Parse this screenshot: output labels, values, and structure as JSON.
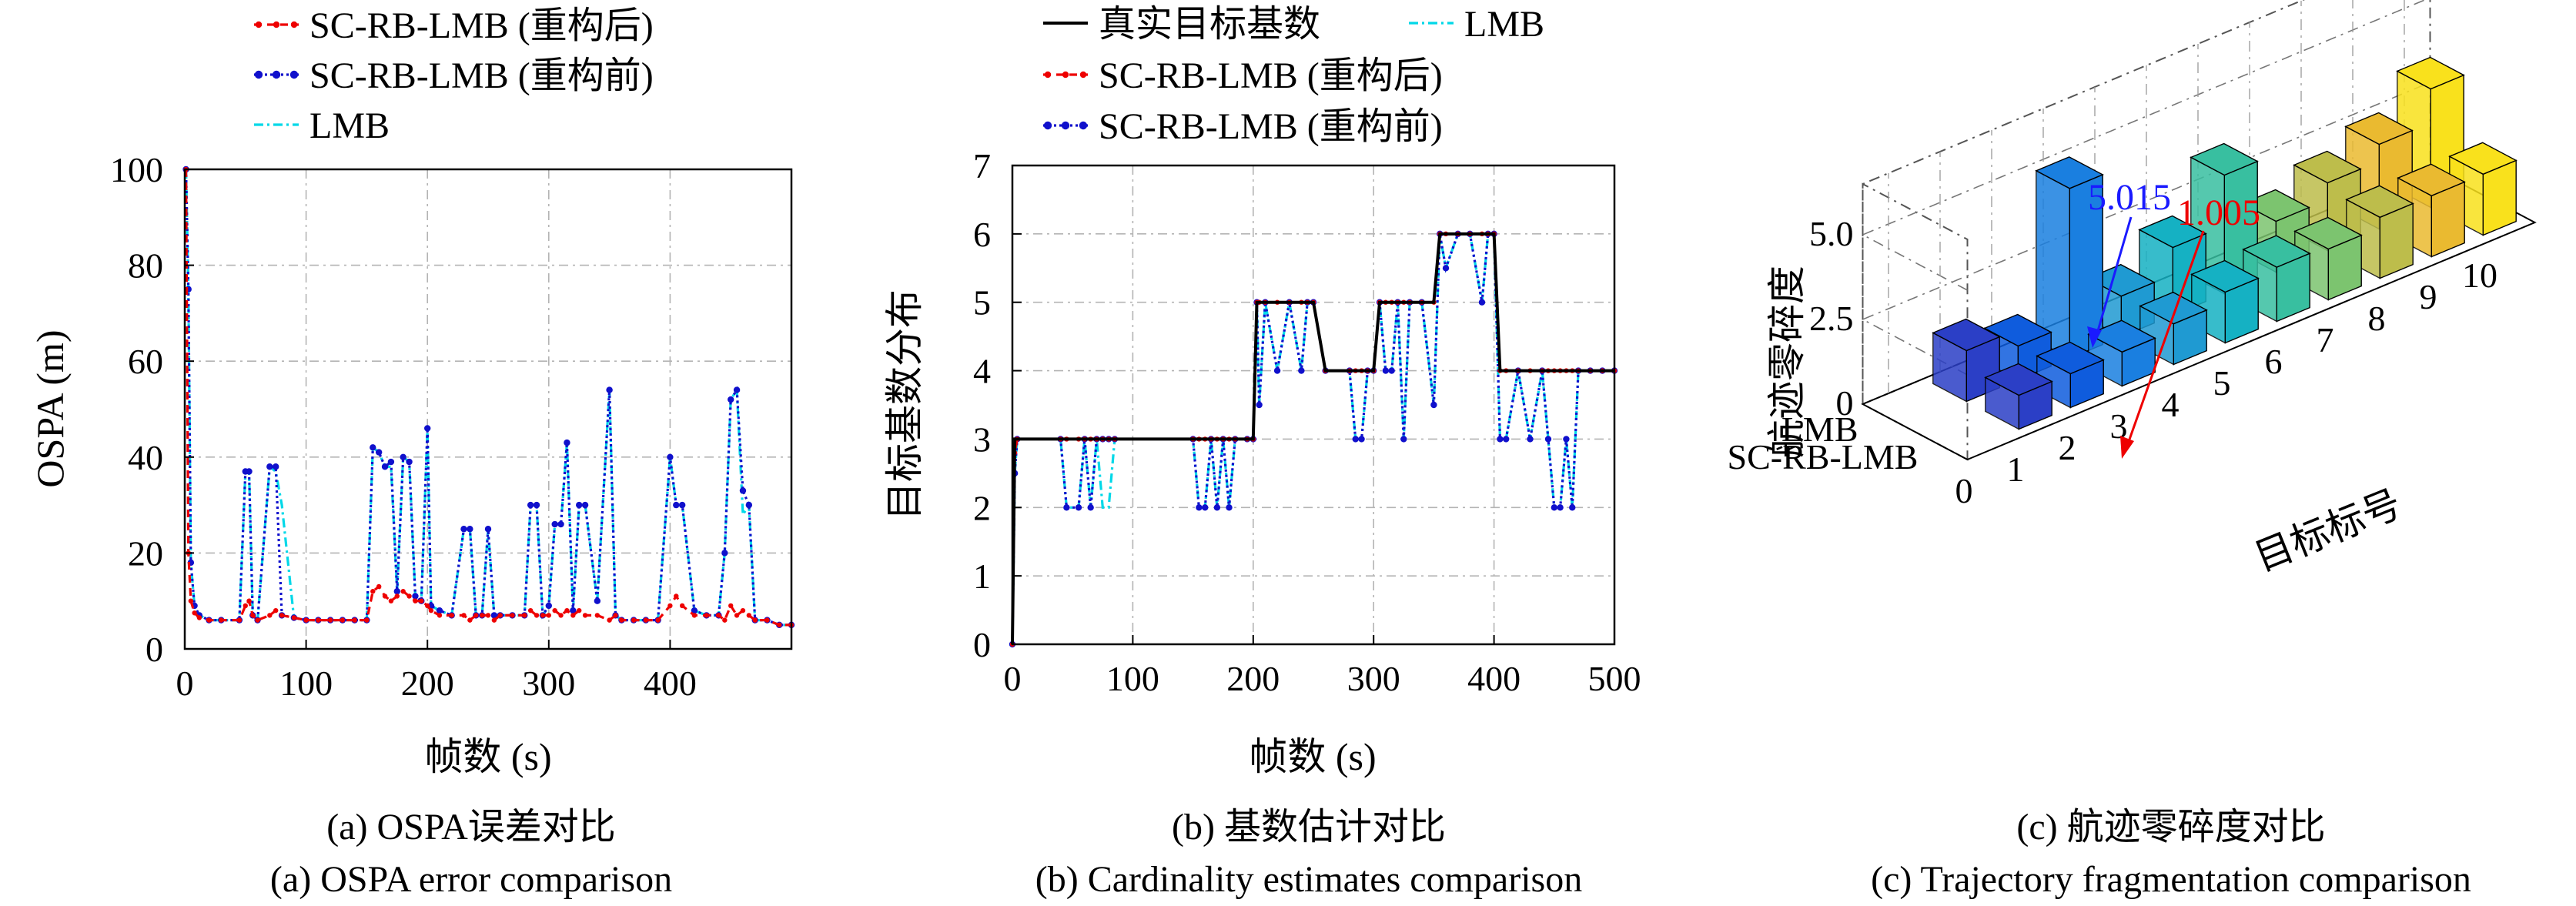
{
  "panel_a": {
    "caption_cn": "(a) OSPA误差对比",
    "caption_en": "(a) OSPA error comparison"
  },
  "panel_b": {
    "caption_cn": "(b) 基数估计对比",
    "caption_en": "(b) Cardinality estimates comparison"
  },
  "panel_c": {
    "caption_cn": "(c) 航迹零碎度对比",
    "caption_en": "(c) Trajectory fragmentation comparison"
  },
  "colors": {
    "red": "#ee0000",
    "blue": "#1010cc",
    "cyan": "#00d8e8",
    "black": "#000000",
    "grid": "#b4b4b4"
  },
  "chart_data": [
    {
      "type": "line",
      "xlabel": "帧数 (s)",
      "ylabel": "OSPA (m)",
      "xlim": [
        0,
        500
      ],
      "ylim": [
        0,
        100
      ],
      "xticks": [
        0,
        100,
        200,
        300,
        400
      ],
      "yticks": [
        0,
        20,
        40,
        60,
        80,
        100
      ],
      "grid": true,
      "legend_position": "top",
      "x": [
        1,
        3,
        5,
        8,
        12,
        20,
        30,
        45,
        50,
        53,
        56,
        60,
        70,
        75,
        80,
        90,
        100,
        110,
        120,
        130,
        140,
        150,
        155,
        160,
        165,
        170,
        175,
        180,
        185,
        190,
        195,
        200,
        203,
        210,
        220,
        230,
        235,
        240,
        245,
        250,
        255,
        260,
        270,
        280,
        285,
        290,
        295,
        300,
        305,
        310,
        315,
        320,
        325,
        330,
        340,
        350,
        355,
        360,
        370,
        380,
        390,
        400,
        405,
        410,
        420,
        430,
        440,
        445,
        450,
        455,
        460,
        465,
        470,
        480,
        490,
        500
      ],
      "series": [
        {
          "name": "SC-RB-LMB (重构后)",
          "values": [
            100,
            20,
            10,
            7.5,
            6.5,
            6,
            6,
            6,
            9,
            10,
            7,
            6,
            7,
            8,
            7,
            6.5,
            6,
            6,
            6,
            6,
            6,
            6,
            12,
            13,
            11,
            10,
            11,
            12,
            11,
            10,
            10,
            9,
            8,
            7,
            7,
            7,
            6,
            7,
            7,
            7,
            6,
            7,
            7,
            7,
            8,
            7,
            7,
            7,
            8,
            7,
            8,
            7,
            8,
            7,
            7,
            6,
            7,
            6,
            6,
            6,
            6,
            9,
            11,
            9,
            7,
            7,
            7,
            6,
            9,
            7,
            8,
            7,
            6,
            6,
            5,
            5
          ]
        },
        {
          "name": "SC-RB-LMB (重构前)",
          "values": [
            100,
            75,
            18,
            9,
            7,
            6,
            6,
            6,
            37,
            37,
            7,
            6,
            38,
            38,
            7,
            6.5,
            6,
            6,
            6,
            6,
            6,
            6,
            42,
            41,
            38,
            39,
            12,
            40,
            39,
            11,
            10,
            46,
            9,
            8,
            7,
            25,
            25,
            7,
            7,
            25,
            7,
            7,
            7,
            7,
            30,
            30,
            7,
            9,
            26,
            26,
            43,
            8,
            30,
            30,
            10,
            54,
            7,
            6,
            6,
            6,
            6,
            40,
            30,
            30,
            8,
            7,
            7,
            20,
            52,
            54,
            33,
            30,
            6,
            6,
            5,
            5
          ]
        },
        {
          "name": "LMB",
          "values": [
            100,
            75,
            18,
            9,
            7,
            6,
            6,
            6,
            37,
            37,
            7,
            6,
            38,
            37,
            30,
            6.5,
            6,
            6,
            6,
            6,
            6,
            6,
            42,
            41,
            38,
            38,
            12,
            40,
            39,
            11,
            10,
            46,
            9,
            8,
            7,
            25,
            25,
            7,
            7,
            25,
            7,
            7,
            7,
            7,
            30,
            30,
            7,
            9,
            26,
            26,
            43,
            8,
            30,
            30,
            10,
            54,
            7,
            6,
            6,
            6,
            6,
            40,
            30,
            30,
            8,
            7,
            7,
            20,
            52,
            54,
            28,
            30,
            6,
            6,
            5,
            5
          ]
        }
      ]
    },
    {
      "type": "line",
      "xlabel": "帧数 (s)",
      "ylabel": "目标基数分布",
      "xlim": [
        0,
        500
      ],
      "ylim": [
        0,
        7
      ],
      "xticks": [
        0,
        100,
        200,
        300,
        400,
        500
      ],
      "yticks": [
        0,
        1,
        2,
        3,
        4,
        5,
        6,
        7
      ],
      "grid": true,
      "legend_position": "top",
      "x": [
        0,
        2,
        4,
        40,
        45,
        55,
        60,
        65,
        70,
        75,
        80,
        85,
        150,
        155,
        160,
        165,
        170,
        175,
        180,
        185,
        195,
        200,
        203,
        205,
        210,
        220,
        230,
        240,
        245,
        250,
        260,
        280,
        285,
        290,
        295,
        300,
        305,
        310,
        315,
        320,
        325,
        330,
        340,
        350,
        355,
        360,
        370,
        380,
        390,
        395,
        400,
        405,
        410,
        420,
        430,
        440,
        445,
        450,
        455,
        460,
        465,
        470,
        480,
        490,
        500
      ],
      "series": [
        {
          "name": "真实目标基数",
          "values": [
            0,
            3,
            3,
            3,
            3,
            3,
            3,
            3,
            3,
            3,
            3,
            3,
            3,
            3,
            3,
            3,
            3,
            3,
            3,
            3,
            3,
            3,
            5,
            5,
            5,
            5,
            5,
            5,
            5,
            5,
            4,
            4,
            4,
            4,
            4,
            4,
            5,
            5,
            5,
            5,
            5,
            5,
            5,
            5,
            6,
            6,
            6,
            6,
            6,
            6,
            6,
            4,
            4,
            4,
            4,
            4,
            4,
            4,
            4,
            4,
            4,
            4,
            4,
            4,
            4
          ]
        },
        {
          "name": "SC-RB-LMB (重构后)",
          "values": [
            0,
            2.8,
            3,
            3,
            3,
            3,
            3,
            3,
            3,
            3,
            3,
            3,
            3,
            3,
            3,
            3,
            3,
            3,
            3,
            3,
            3,
            3,
            5,
            5,
            5,
            5,
            5,
            5,
            5,
            5,
            4,
            4,
            4,
            4,
            4,
            4,
            5,
            5,
            5,
            5,
            5,
            5,
            5,
            5,
            6,
            6,
            6,
            6,
            6,
            6,
            6,
            4,
            4,
            4,
            4,
            4,
            4,
            4,
            4,
            4,
            4,
            4,
            4,
            4,
            4
          ]
        },
        {
          "name": "SC-RB-LMB (重构前)",
          "values": [
            0,
            2.5,
            3,
            3,
            2,
            2,
            3,
            2,
            3,
            3,
            3,
            3,
            3,
            2,
            2,
            3,
            2,
            3,
            2,
            3,
            3,
            3,
            5,
            3.5,
            5,
            4,
            5,
            4,
            5,
            5,
            4,
            4,
            3,
            3,
            4,
            4,
            5,
            4,
            4,
            5,
            3,
            5,
            5,
            3.5,
            6,
            5.5,
            6,
            6,
            5,
            6,
            6,
            3,
            3,
            4,
            3,
            4,
            3,
            2,
            2,
            3,
            2,
            4,
            4,
            4,
            4
          ]
        },
        {
          "name": "LMB",
          "values": [
            0,
            2.5,
            3,
            3,
            2,
            2,
            3,
            2,
            3,
            2,
            2,
            3,
            3,
            2,
            2,
            3,
            2,
            3,
            2,
            3,
            3,
            3,
            5,
            3.5,
            5,
            4,
            5,
            4,
            5,
            5,
            4,
            4,
            3,
            3,
            4,
            4,
            5,
            4,
            4,
            5,
            3,
            5,
            5,
            3.5,
            6,
            5.5,
            6,
            6,
            5,
            6,
            6,
            3,
            3,
            4,
            3,
            4,
            3,
            2,
            2,
            3,
            2,
            4,
            4,
            4,
            4
          ]
        }
      ]
    },
    {
      "type": "bar",
      "dimension": "3d",
      "xlabel": "目标标号",
      "zlabel": "航迹零碎度",
      "categories": [
        "0",
        "1",
        "2",
        "3",
        "4",
        "5",
        "6",
        "7",
        "8",
        "9",
        "10"
      ],
      "rows": [
        "LMB",
        "SC-RB-LMB"
      ],
      "zticks": [
        "0",
        "2.5",
        "5.0"
      ],
      "zlim": [
        0,
        6
      ],
      "series": [
        {
          "name": "LMB",
          "values": [
            null,
            1.5,
            1,
            5.015,
            1.2,
            2.0,
            3.5,
            1.5,
            2.0,
            2.5,
            3.5
          ]
        },
        {
          "name": "SC-RB-LMB",
          "values": [
            null,
            1,
            1,
            1.005,
            1.2,
            1.5,
            1.6,
            1.5,
            1.8,
            1.8,
            1.8
          ]
        }
      ],
      "annotations": [
        {
          "text": "5.015",
          "color": "#1a1aff"
        },
        {
          "text": "1.005",
          "color": "#ee0000"
        }
      ]
    }
  ]
}
